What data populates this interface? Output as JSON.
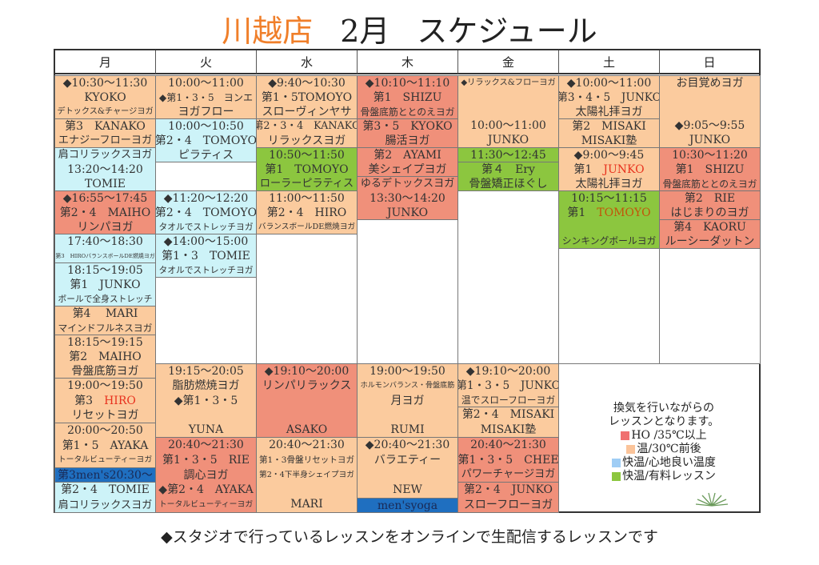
{
  "title": {
    "store": "川越店",
    "month": "2月",
    "label": "スケジュール"
  },
  "colors": {
    "hot": "#f0907a",
    "warm": "#fbcb9e",
    "comfort": "#cdf3f8",
    "paid": "#8cc63f",
    "mens": "#1f6fc0",
    "empty": "#ffffff"
  },
  "days": [
    "月",
    "火",
    "水",
    "木",
    "金",
    "土",
    "日"
  ],
  "columns": [
    {
      "cells": [
        {
          "type": "warm",
          "lines": [
            {
              "text": "◆10:30〜11:30"
            },
            {
              "text": "KYOKO"
            },
            {
              "text": "デトックス&チャージヨガ"
            }
          ]
        },
        {
          "type": "warm",
          "lines": [
            {
              "text": "第3　KANAKO"
            },
            {
              "text": "エナジーフローヨガ"
            }
          ]
        },
        {
          "type": "comfort",
          "lines": [
            {
              "text": "肩コリラックスヨガ"
            },
            {
              "text": "13:20〜14:20"
            },
            {
              "text": "TOMIE"
            }
          ]
        },
        {
          "type": "hot",
          "lines": [
            {
              "text": "◆16:55〜17:45"
            },
            {
              "text": "第2・4　MAIHO"
            },
            {
              "text": "リンパヨガ"
            }
          ]
        },
        {
          "type": "comfort",
          "lines": [
            {
              "text": "17:40〜18:30"
            },
            {
              "text": "第3　HIROバランスボールDE燃焼ヨガ"
            }
          ]
        },
        {
          "type": "comfort",
          "lines": [
            {
              "text": "18:15〜19:05"
            },
            {
              "text": "第1　JUNKO"
            },
            {
              "text": "ボールで全身ストレッチ"
            }
          ]
        },
        {
          "type": "warm",
          "lines": [
            {
              "text": "第4　 MARI"
            },
            {
              "text": "マインドフルネスヨガ"
            }
          ]
        },
        {
          "type": "warm",
          "lines": [
            {
              "text": "18:15〜19:15"
            },
            {
              "text": "第2　MAIHO"
            },
            {
              "text": "骨盤底筋ヨガ"
            }
          ]
        },
        {
          "type": "warm",
          "lines": [
            {
              "text": "19:00〜19:50"
            },
            {
              "text": "第3　",
              "name": "HIRO",
              "highlight": "red"
            },
            {
              "text": "リセットヨガ"
            }
          ]
        },
        {
          "type": "warm",
          "lines": [
            {
              "text": "20:00〜20:50"
            },
            {
              "text": "第1・5　AYAKA"
            },
            {
              "text": "トータルビューティーヨガ"
            }
          ]
        },
        {
          "type": "mens",
          "lines": [
            {
              "text": "第3men's20:30〜"
            }
          ]
        },
        {
          "type": "comfort",
          "lines": [
            {
              "text": "第2・4　TOMIE"
            },
            {
              "text": "肩コリラックスヨガ"
            }
          ]
        }
      ]
    },
    {
      "cells": [
        {
          "type": "warm",
          "lines": [
            {
              "text": "10:00〜11:00"
            },
            {
              "text": "◆第1・3・5　ヨンエ"
            },
            {
              "text": "ヨガフロー"
            }
          ]
        },
        {
          "type": "comfort",
          "lines": [
            {
              "text": "10:00〜10:50"
            },
            {
              "text": "第2・4　TOMOYO"
            },
            {
              "text": "ピラティス"
            }
          ]
        },
        {
          "type": "empty",
          "lines": []
        },
        {
          "type": "comfort",
          "lines": [
            {
              "text": "◆11:20〜12:20"
            },
            {
              "text": "第2・4　TOMOYO"
            },
            {
              "text": "タオルでストレッチヨガ"
            }
          ]
        },
        {
          "type": "comfort",
          "lines": [
            {
              "text": "◆14:00〜15:00"
            },
            {
              "text": "第1・3　TOMIE"
            },
            {
              "text": "タオルでストレッチヨガ"
            }
          ]
        },
        {
          "type": "empty",
          "lines": []
        },
        {
          "type": "warm",
          "lines": [
            {
              "text": "19:15〜20:05"
            },
            {
              "text": "脂肪燃焼ヨガ"
            },
            {
              "text": "◆第1・3・5"
            },
            {
              "text": ""
            },
            {
              "text": "YUNA"
            }
          ]
        },
        {
          "type": "hot",
          "lines": [
            {
              "text": "20:40〜21:30"
            },
            {
              "text": "第1・3・5　RIE"
            },
            {
              "text": "調心ヨガ"
            },
            {
              "text": "◆第2・4　AYAKA"
            },
            {
              "text": "トータルビューティーヨガ"
            }
          ]
        }
      ]
    },
    {
      "cells": [
        {
          "type": "warm",
          "lines": [
            {
              "text": "◆9:40〜10:30"
            },
            {
              "text": "第1・5TOMOYO"
            },
            {
              "text": "スローヴィンヤサ"
            }
          ]
        },
        {
          "type": "warm",
          "lines": [
            {
              "text": "第2・3・4　KANAKO"
            },
            {
              "text": "リラックスヨガ"
            }
          ]
        },
        {
          "type": "paid",
          "lines": [
            {
              "text": "10:50〜11:50"
            },
            {
              "text": "第1　TOMOYO"
            },
            {
              "text": "ローラーピラティス"
            }
          ]
        },
        {
          "type": "warm",
          "lines": [
            {
              "text": "11:00〜11:50"
            },
            {
              "text": "第2・4　HIRO"
            },
            {
              "text": "バランスボールDE燃焼ヨガ"
            }
          ]
        },
        {
          "type": "empty",
          "lines": []
        },
        {
          "type": "hot",
          "lines": [
            {
              "text": "◆19:10〜20:00"
            },
            {
              "text": "リンパリラックス"
            },
            {
              "text": ""
            },
            {
              "text": ""
            },
            {
              "text": "ASAKO"
            }
          ]
        },
        {
          "type": "warm",
          "lines": [
            {
              "text": "20:40〜21:30"
            },
            {
              "text": "第1・3骨盤リセットヨガ"
            },
            {
              "text": "第2・4下半身シェイプヨガ"
            },
            {
              "text": ""
            },
            {
              "text": "MARI"
            }
          ]
        }
      ]
    },
    {
      "cells": [
        {
          "type": "hot",
          "lines": [
            {
              "text": "◆10:10〜11:10"
            },
            {
              "text": "第1　SHIZU"
            },
            {
              "text": "骨盤底筋ととのえヨガ"
            }
          ]
        },
        {
          "type": "hot",
          "lines": [
            {
              "text": "第3・5　KYOKO"
            },
            {
              "text": "腸活ヨガ"
            }
          ]
        },
        {
          "type": "hot",
          "lines": [
            {
              "text": "第2　AYAMI"
            },
            {
              "text": "美シェイプヨガ"
            }
          ]
        },
        {
          "type": "hot",
          "lines": [
            {
              "text": "ゆるデトックスヨガ"
            },
            {
              "text": "13:30〜14:20"
            },
            {
              "text": "JUNKO"
            }
          ]
        },
        {
          "type": "empty",
          "lines": []
        },
        {
          "type": "warm",
          "lines": [
            {
              "text": "19:00〜19:50"
            },
            {
              "text": "ホルモンバランス・骨盤底筋"
            },
            {
              "text": "月ヨガ"
            },
            {
              "text": ""
            },
            {
              "text": "RUMI"
            }
          ]
        },
        {
          "type": "warm",
          "lines": [
            {
              "text": "◆20:40〜21:30"
            },
            {
              "text": "バラエティー"
            },
            {
              "text": ""
            },
            {
              "text": "NEW"
            }
          ]
        },
        {
          "type": "mens",
          "lines": [
            {
              "text": "men'syoga"
            }
          ]
        }
      ]
    },
    {
      "cells": [
        {
          "type": "warm",
          "lines": [
            {
              "text": "◆リラックス&フローヨガ"
            },
            {
              "text": ""
            },
            {
              "text": ""
            },
            {
              "text": "10:00〜11:00"
            },
            {
              "text": "JUNKO"
            }
          ]
        },
        {
          "type": "paid",
          "lines": [
            {
              "text": "11:30〜12:45"
            }
          ]
        },
        {
          "type": "paid",
          "lines": [
            {
              "text": "第４　Ery"
            },
            {
              "text": "骨盤矯正ほぐし"
            }
          ]
        },
        {
          "type": "empty",
          "lines": []
        },
        {
          "type": "warm",
          "lines": [
            {
              "text": "◆19:10〜20:00"
            },
            {
              "text": "第1・3・5　JUNKO"
            },
            {
              "text": "温でスローフローヨガ"
            }
          ]
        },
        {
          "type": "warm",
          "lines": [
            {
              "text": "第2・4　MISAKI"
            },
            {
              "text": "MISAKI塾"
            }
          ]
        },
        {
          "type": "hot",
          "lines": [
            {
              "text": "20:40〜21:30"
            },
            {
              "text": "第1・3・5　CHEE"
            },
            {
              "text": "パワーチャージヨガ"
            }
          ]
        },
        {
          "type": "hot",
          "lines": [
            {
              "text": "第2・4　JUNKO"
            },
            {
              "text": "スローフローヨガ"
            }
          ]
        }
      ]
    },
    {
      "cells": [
        {
          "type": "warm",
          "lines": [
            {
              "text": "◆10:00〜11:00"
            },
            {
              "text": "第3・4・5　JUNKO"
            },
            {
              "text": "太陽礼拝ヨガ"
            }
          ]
        },
        {
          "type": "warm",
          "lines": [
            {
              "text": "第2　MISAKI"
            },
            {
              "text": "MISAKI塾"
            }
          ]
        },
        {
          "type": "warm",
          "lines": [
            {
              "text": "◆9:00〜9:45"
            },
            {
              "text": "第1　",
              "name": "JUNKO",
              "highlight": "red"
            },
            {
              "text": "太陽礼拝ヨガ"
            }
          ]
        },
        {
          "type": "paid",
          "lines": [
            {
              "text": "10:15〜11:15"
            },
            {
              "text": "第1　",
              "name": "TOMOYO",
              "highlight": "brown"
            },
            {
              "text": ""
            },
            {
              "text": "シンキングボールヨガ"
            }
          ]
        },
        {
          "type": "empty",
          "lines": []
        }
      ]
    },
    {
      "cells": [
        {
          "type": "warm",
          "lines": [
            {
              "text": "お目覚めヨガ"
            },
            {
              "text": ""
            },
            {
              "text": ""
            },
            {
              "text": "◆9:05〜9:55"
            },
            {
              "text": "JUNKO"
            }
          ]
        },
        {
          "type": "hot",
          "lines": [
            {
              "text": "10:30〜11:20"
            },
            {
              "text": "第1　SHIZU"
            },
            {
              "text": "骨盤底筋ととのえヨガ"
            }
          ]
        },
        {
          "type": "hot",
          "lines": [
            {
              "text": "第2　RIE"
            },
            {
              "text": "はじまりのヨガ"
            }
          ]
        },
        {
          "type": "hot",
          "lines": [
            {
              "text": "第4　KAORU"
            },
            {
              "text": "ルーシーダットン"
            }
          ]
        },
        {
          "type": "empty",
          "lines": []
        }
      ]
    }
  ],
  "legend": {
    "note_line1": "換気を行いながらの",
    "note_line2": "レッスンとなります。",
    "items": [
      {
        "color": "#f07070",
        "label": "HO /35℃以上"
      },
      {
        "color": "#fbc49a",
        "label": "温/30℃前後"
      },
      {
        "color": "#9fcdf5",
        "label": "快温/心地良い温度"
      },
      {
        "color": "#8cc63f",
        "label": "快温/有料レッスン"
      }
    ]
  },
  "footer": "◆スタジオで行っているレッスンをオンラインで生配信するレッスンです"
}
